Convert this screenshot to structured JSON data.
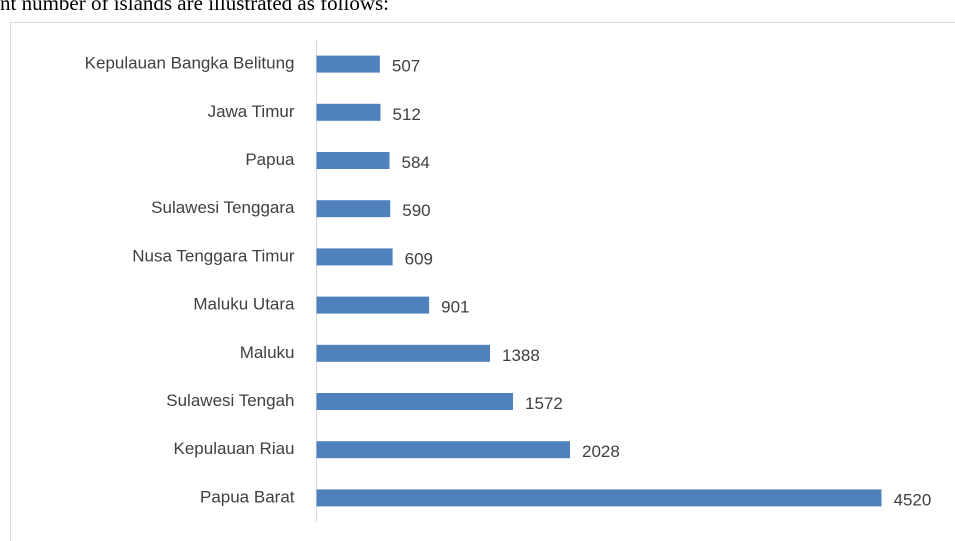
{
  "document_text": "nt number of islands are illustrated as follows:",
  "chart_data": {
    "type": "barh",
    "categories": [
      "Kepulauan Bangka Belitung",
      "Jawa Timur",
      "Papua",
      "Sulawesi Tenggara",
      "Nusa Tenggara Timur",
      "Maluku Utara",
      "Maluku",
      "Sulawesi Tengah",
      "Kepulauan Riau",
      "Papua Barat"
    ],
    "values": [
      507,
      512,
      584,
      590,
      609,
      901,
      1388,
      1572,
      2028,
      4520
    ],
    "color": "#4f81bd",
    "xlim": [
      0,
      4800
    ]
  }
}
